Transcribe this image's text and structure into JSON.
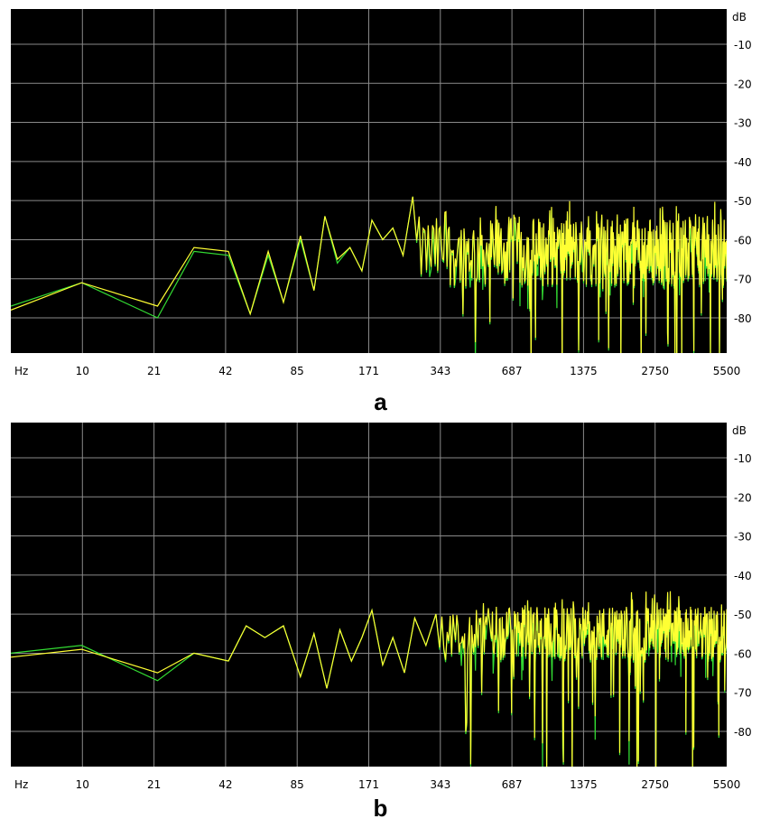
{
  "colors": {
    "plot_bg": "#000000",
    "frame_bg": "#ffffff",
    "grid": "#8a8a8a",
    "series_yellow": "#ffff33",
    "series_green": "#33dd33"
  },
  "chart_data": [
    {
      "type": "line",
      "panel_label": "a",
      "x_scale": "log",
      "x_unit_label": "Hz",
      "y_unit_label": "dB",
      "xlim": [
        5,
        5500
      ],
      "ylim": [
        -89,
        -1
      ],
      "x_tick_labels": [
        "10",
        "21",
        "42",
        "85",
        "171",
        "343",
        "687",
        "1375",
        "2750",
        "5500"
      ],
      "y_tick_labels": [
        "-10",
        "-20",
        "-30",
        "-40",
        "-50",
        "-60",
        "-70",
        "-80"
      ],
      "y_ticks": [
        -10,
        -20,
        -30,
        -40,
        -50,
        -60,
        -70,
        -80
      ],
      "grid": true,
      "series": [
        {
          "color": "green",
          "x": [
            5,
            10,
            21,
            30,
            42,
            52,
            62,
            72,
            85,
            97,
            108,
            122,
            138,
            155,
            171,
            190,
            210,
            232,
            255
          ],
          "y": [
            -77,
            -71,
            -80,
            -63,
            -64,
            -79,
            -64,
            -76,
            -60,
            -73,
            -54,
            -66,
            -62,
            -68,
            -55,
            -60,
            -57,
            -64,
            -49
          ]
        },
        {
          "color": "yellow",
          "x": [
            5,
            10,
            21,
            30,
            42,
            52,
            62,
            72,
            85,
            97,
            108,
            122,
            138,
            155,
            171,
            190,
            210,
            232,
            255
          ],
          "y": [
            -78,
            -71,
            -77,
            -62,
            -63,
            -79,
            -63,
            -76,
            -59,
            -73,
            -54,
            -65,
            -62,
            -68,
            -55,
            -60,
            -57,
            -64,
            -49
          ]
        }
      ],
      "noise": {
        "from_hz": 255,
        "to_hz": 5500,
        "center_db": -63,
        "spread_db": 9,
        "dip_to_db": -88
      }
    },
    {
      "type": "line",
      "panel_label": "b",
      "x_scale": "log",
      "x_unit_label": "Hz",
      "y_unit_label": "dB",
      "xlim": [
        5,
        5500
      ],
      "ylim": [
        -89,
        -1
      ],
      "x_tick_labels": [
        "10",
        "21",
        "42",
        "85",
        "171",
        "343",
        "687",
        "1375",
        "2750",
        "5500"
      ],
      "y_tick_labels": [
        "-10",
        "-20",
        "-30",
        "-40",
        "-50",
        "-60",
        "-70",
        "-80"
      ],
      "y_ticks": [
        -10,
        -20,
        -30,
        -40,
        -50,
        -60,
        -70,
        -80
      ],
      "grid": true,
      "series": [
        {
          "color": "green",
          "x": [
            5,
            10,
            21,
            30,
            42,
            50,
            60,
            72,
            85,
            97,
            110,
            125,
            140,
            155,
            171,
            190,
            210,
            235,
            260,
            290,
            320
          ],
          "y": [
            -60,
            -58,
            -67,
            -60,
            -62,
            -53,
            -56,
            -53,
            -66,
            -55,
            -69,
            -54,
            -62,
            -56,
            -49,
            -63,
            -56,
            -65,
            -51,
            -58,
            -50
          ]
        },
        {
          "color": "yellow",
          "x": [
            5,
            10,
            21,
            30,
            42,
            50,
            60,
            72,
            85,
            97,
            110,
            125,
            140,
            155,
            171,
            190,
            210,
            235,
            260,
            290,
            320
          ],
          "y": [
            -61,
            -59,
            -65,
            -60,
            -62,
            -53,
            -56,
            -53,
            -66,
            -55,
            -69,
            -54,
            -62,
            -56,
            -49,
            -63,
            -56,
            -65,
            -51,
            -58,
            -50
          ]
        }
      ],
      "noise": {
        "from_hz": 320,
        "to_hz": 5500,
        "center_db": -55,
        "spread_db": 7,
        "dip_to_db": -85
      }
    }
  ]
}
